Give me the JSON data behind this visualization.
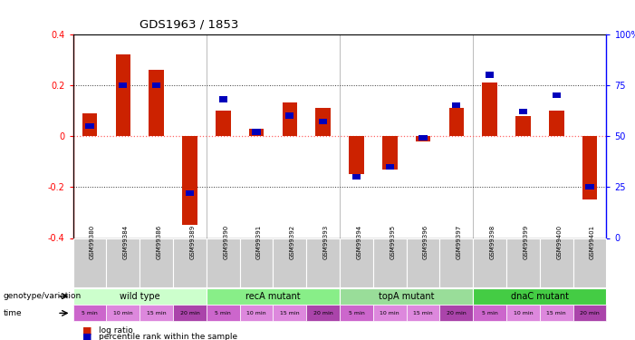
{
  "title": "GDS1963 / 1853",
  "samples": [
    "GSM99380",
    "GSM99384",
    "GSM99386",
    "GSM99389",
    "GSM99390",
    "GSM99391",
    "GSM99392",
    "GSM99393",
    "GSM99394",
    "GSM99395",
    "GSM99396",
    "GSM99397",
    "GSM99398",
    "GSM99399",
    "GSM99400",
    "GSM99401"
  ],
  "log_ratio": [
    0.09,
    0.32,
    0.26,
    -0.35,
    0.1,
    0.03,
    0.13,
    0.11,
    -0.15,
    -0.13,
    -0.02,
    0.11,
    0.21,
    0.08,
    0.1,
    -0.25
  ],
  "pct_rank": [
    55,
    75,
    75,
    22,
    68,
    52,
    60,
    57,
    30,
    35,
    49,
    65,
    80,
    62,
    70,
    25
  ],
  "ylim_left": [
    -0.4,
    0.4
  ],
  "ylim_right": [
    0,
    100
  ],
  "bar_color_red": "#cc2200",
  "bar_color_blue": "#0000bb",
  "zero_line_color": "#ff6666",
  "dotted_line_color": "#333333",
  "background_color": "#ffffff",
  "genotype_groups": [
    {
      "label": "wild type",
      "start": 0,
      "end": 4,
      "color": "#ccffcc"
    },
    {
      "label": "recA mutant",
      "start": 4,
      "end": 8,
      "color": "#88ee88"
    },
    {
      "label": "topA mutant",
      "start": 8,
      "end": 12,
      "color": "#99dd99"
    },
    {
      "label": "dnaC mutant",
      "start": 12,
      "end": 16,
      "color": "#44cc44"
    }
  ],
  "time_colors_cycle": [
    "#cc66cc",
    "#dd88dd",
    "#dd88dd",
    "#aa44aa"
  ],
  "time_labels": [
    "5 min",
    "10 min",
    "15 min",
    "20 min",
    "5 min",
    "10 min",
    "15 min",
    "20 min",
    "5 min",
    "10 min",
    "15 min",
    "20 min",
    "5 min",
    "10 min",
    "15 min",
    "20 min"
  ],
  "label_genotype": "genotype/variation",
  "label_time": "time",
  "legend_red": "log ratio",
  "legend_blue": "percentile rank within the sample"
}
